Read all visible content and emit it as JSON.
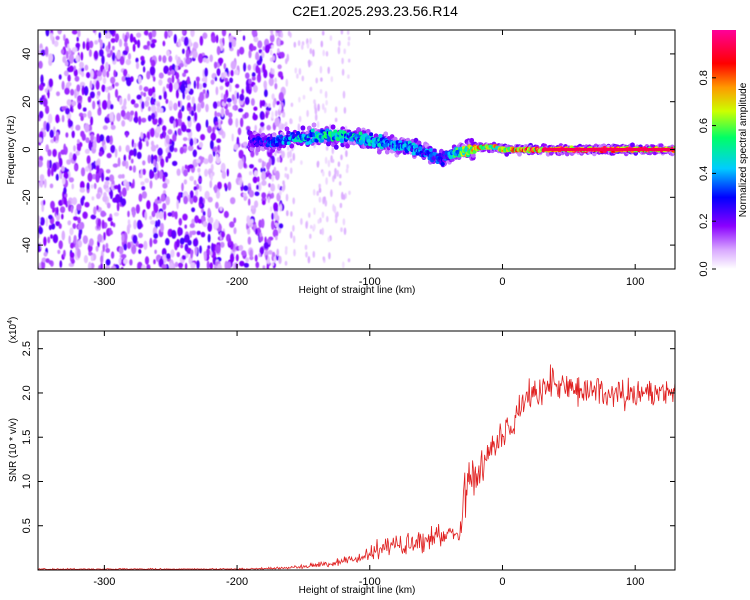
{
  "title": "C2E1.2025.293.23.56.R14",
  "chart_data": [
    {
      "type": "heatmap",
      "xlabel": "Height of straight line (km)",
      "ylabel": "Frequency (Hz)",
      "xlim": [
        -350,
        130
      ],
      "ylim": [
        -50,
        50
      ],
      "xticks": [
        -300,
        -200,
        -100,
        0,
        100
      ],
      "xtick_labels": [
        "-300",
        "-200",
        "-100",
        "0",
        "100"
      ],
      "yticks": [
        40,
        20,
        0,
        -20,
        -40
      ],
      "ytick_labels": [
        "40",
        "20",
        "0",
        "-20",
        "-40"
      ],
      "colorbar": {
        "label": "Normalized spectral amplitude",
        "range": [
          0,
          1
        ],
        "ticks": [
          0.0,
          0.2,
          0.4,
          0.6,
          0.8
        ],
        "tick_labels": [
          "0.0",
          "0.2",
          "0.4",
          "0.6",
          "0.8"
        ],
        "colors": [
          "#ffffff",
          "#d9a8ff",
          "#8a00ff",
          "#0000ff",
          "#00ccff",
          "#00ff66",
          "#ccff00",
          "#ff9900",
          "#ff0000",
          "#ff0099"
        ]
      },
      "noise_region_x": [
        -350,
        -175
      ],
      "ridge": {
        "x": [
          -190,
          -170,
          -150,
          -130,
          -115,
          -100,
          -85,
          -70,
          -55,
          -45,
          -35,
          -25,
          -15,
          -5,
          0,
          20,
          40,
          60,
          80,
          100,
          130
        ],
        "freq": [
          3,
          4,
          5,
          6,
          5,
          4,
          2,
          1,
          -2,
          -4,
          -1,
          0,
          1,
          1,
          0,
          0,
          0,
          0,
          0,
          0,
          0
        ],
        "amplitude": [
          0.3,
          0.4,
          0.5,
          0.55,
          0.5,
          0.5,
          0.45,
          0.45,
          0.4,
          0.35,
          0.55,
          0.75,
          0.8,
          0.75,
          0.75,
          0.9,
          0.95,
          0.95,
          0.95,
          0.95,
          0.9
        ]
      }
    },
    {
      "type": "line",
      "xlabel": "Height of straight line (km)",
      "ylabel": "SNR (10 * v/v)",
      "y_multiplier": "(x10",
      "y_multiplier_exp": "4",
      "y_multiplier_close": ")",
      "xlim": [
        -350,
        130
      ],
      "ylim": [
        0,
        2.7
      ],
      "xticks": [
        -300,
        -200,
        -100,
        0,
        100
      ],
      "xtick_labels": [
        "-300",
        "-200",
        "-100",
        "0",
        "100"
      ],
      "yticks": [
        0.5,
        1.0,
        1.5,
        2.0,
        2.5
      ],
      "ytick_labels": [
        "0.5",
        "1.0",
        "1.5",
        "2.0",
        "2.5"
      ],
      "line_color": "#e02020",
      "series": [
        {
          "name": "SNR",
          "x": [
            -350,
            -300,
            -250,
            -200,
            -170,
            -150,
            -130,
            -110,
            -100,
            -90,
            -80,
            -70,
            -60,
            -50,
            -40,
            -32,
            -28,
            -26,
            -24,
            -20,
            -15,
            -10,
            -5,
            0,
            10,
            20,
            30,
            40,
            50,
            60,
            70,
            80,
            90,
            100,
            110,
            120,
            130
          ],
          "mean": [
            0.01,
            0.01,
            0.01,
            0.01,
            0.02,
            0.04,
            0.07,
            0.12,
            0.18,
            0.25,
            0.3,
            0.27,
            0.3,
            0.38,
            0.42,
            0.45,
            1.0,
            1.15,
            1.0,
            1.1,
            1.2,
            1.3,
            1.45,
            1.55,
            1.75,
            1.95,
            2.05,
            2.1,
            2.05,
            2.05,
            2.0,
            2.0,
            2.0,
            1.95,
            2.0,
            2.0,
            2.05
          ],
          "noise": [
            0.01,
            0.01,
            0.01,
            0.01,
            0.02,
            0.03,
            0.05,
            0.08,
            0.12,
            0.2,
            0.2,
            0.18,
            0.2,
            0.2,
            0.2,
            0.2,
            0.5,
            0.5,
            0.4,
            0.3,
            0.3,
            0.3,
            0.3,
            0.3,
            0.3,
            0.3,
            0.25,
            0.3,
            0.25,
            0.25,
            0.25,
            0.25,
            0.25,
            0.25,
            0.25,
            0.25,
            0.25
          ]
        }
      ]
    }
  ]
}
